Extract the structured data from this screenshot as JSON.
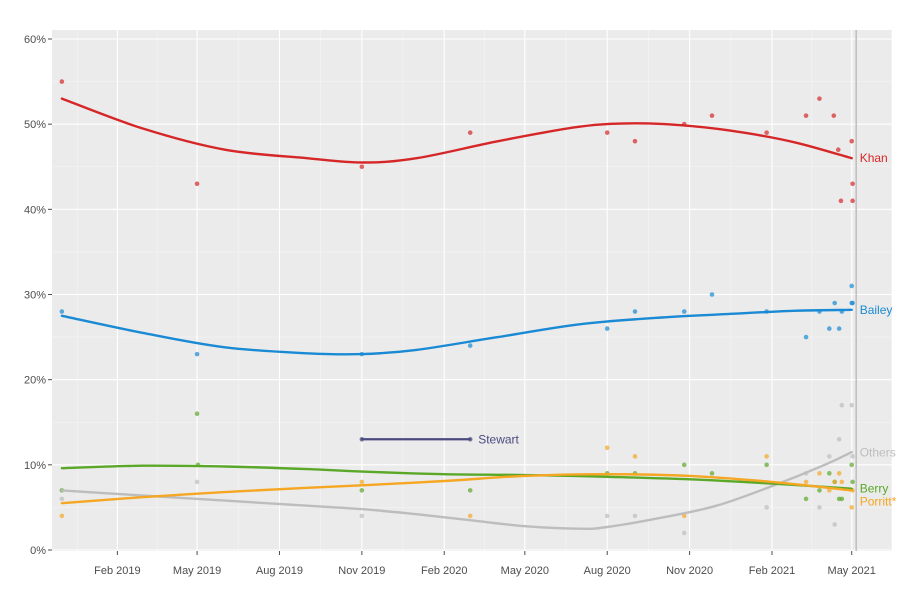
{
  "chart_data": {
    "type": "line",
    "title": "",
    "xlabel": "",
    "ylabel": "",
    "ylim": [
      0,
      60
    ],
    "xlim": [
      "2018-11-20",
      "2021-06-15"
    ],
    "grid": true,
    "legend": "none",
    "y_ticks": [
      "0%",
      "10%",
      "20%",
      "30%",
      "40%",
      "50%",
      "60%"
    ],
    "x_ticks": [
      {
        "date": "2019-02-01",
        "label": "Feb 2019"
      },
      {
        "date": "2019-05-01",
        "label": "May 2019"
      },
      {
        "date": "2019-08-01",
        "label": "Aug 2019"
      },
      {
        "date": "2019-11-01",
        "label": "Nov 2019"
      },
      {
        "date": "2020-02-01",
        "label": "Feb 2020"
      },
      {
        "date": "2020-05-01",
        "label": "May 2020"
      },
      {
        "date": "2020-08-01",
        "label": "Aug 2020"
      },
      {
        "date": "2020-11-01",
        "label": "Nov 2020"
      },
      {
        "date": "2021-02-01",
        "label": "Feb 2021"
      },
      {
        "date": "2021-05-01",
        "label": "May 2021"
      }
    ],
    "election_date": "2021-05-06",
    "series": [
      {
        "name": "Khan",
        "color": "#d62728",
        "trend": [
          [
            "2018-12-01",
            53
          ],
          [
            "2019-03-01",
            49.5
          ],
          [
            "2019-06-01",
            47
          ],
          [
            "2019-09-01",
            46
          ],
          [
            "2019-11-01",
            45.5
          ],
          [
            "2020-01-01",
            46
          ],
          [
            "2020-04-01",
            48
          ],
          [
            "2020-07-01",
            49.7
          ],
          [
            "2020-09-01",
            50.1
          ],
          [
            "2020-11-01",
            49.8
          ],
          [
            "2021-01-01",
            49
          ],
          [
            "2021-03-01",
            47.8
          ],
          [
            "2021-05-01",
            46
          ]
        ],
        "points": [
          [
            "2018-12-01",
            55
          ],
          [
            "2019-05-01",
            43
          ],
          [
            "2019-11-01",
            45
          ],
          [
            "2020-03-01",
            49
          ],
          [
            "2020-08-01",
            49
          ],
          [
            "2020-09-01",
            48
          ],
          [
            "2020-10-26",
            50
          ],
          [
            "2020-11-26",
            51
          ],
          [
            "2021-01-26",
            49
          ],
          [
            "2021-03-11",
            51
          ],
          [
            "2021-03-26",
            53
          ],
          [
            "2021-04-11",
            51
          ],
          [
            "2021-04-16",
            47
          ],
          [
            "2021-04-19",
            41
          ],
          [
            "2021-05-01",
            48
          ],
          [
            "2021-05-02",
            43
          ],
          [
            "2021-05-02",
            41
          ]
        ]
      },
      {
        "name": "Bailey",
        "color": "#1a8ad4",
        "trend": [
          [
            "2018-12-01",
            27.5
          ],
          [
            "2019-03-01",
            25.5
          ],
          [
            "2019-06-01",
            23.8
          ],
          [
            "2019-09-01",
            23.1
          ],
          [
            "2019-11-01",
            23
          ],
          [
            "2020-01-01",
            23.5
          ],
          [
            "2020-04-01",
            25
          ],
          [
            "2020-07-01",
            26.5
          ],
          [
            "2020-10-01",
            27.3
          ],
          [
            "2021-01-01",
            27.8
          ],
          [
            "2021-03-01",
            28.1
          ],
          [
            "2021-05-01",
            28.2
          ]
        ],
        "points": [
          [
            "2018-12-01",
            28
          ],
          [
            "2019-05-01",
            23
          ],
          [
            "2019-11-01",
            23
          ],
          [
            "2020-03-01",
            24
          ],
          [
            "2020-08-01",
            26
          ],
          [
            "2020-09-01",
            28
          ],
          [
            "2020-10-26",
            28
          ],
          [
            "2020-11-26",
            30
          ],
          [
            "2021-01-26",
            28
          ],
          [
            "2021-03-11",
            25
          ],
          [
            "2021-03-26",
            28
          ],
          [
            "2021-04-06",
            26
          ],
          [
            "2021-04-12",
            29
          ],
          [
            "2021-04-17",
            26
          ],
          [
            "2021-04-20",
            28
          ],
          [
            "2021-05-01",
            29
          ],
          [
            "2021-05-01",
            31
          ],
          [
            "2021-05-02",
            29
          ]
        ]
      },
      {
        "name": "Stewart",
        "color": "#4b4a80",
        "trend": [
          [
            "2019-11-01",
            13
          ],
          [
            "2020-03-01",
            13
          ]
        ],
        "points": [
          [
            "2019-11-01",
            13
          ],
          [
            "2020-03-01",
            13
          ]
        ]
      },
      {
        "name": "Others",
        "color": "#bdbdbd",
        "trend": [
          [
            "2018-12-01",
            7
          ],
          [
            "2019-03-01",
            6.4
          ],
          [
            "2019-06-01",
            5.8
          ],
          [
            "2019-09-01",
            5.2
          ],
          [
            "2019-11-01",
            4.8
          ],
          [
            "2020-01-01",
            4.2
          ],
          [
            "2020-03-01",
            3.5
          ],
          [
            "2020-05-01",
            2.8
          ],
          [
            "2020-07-01",
            2.5
          ],
          [
            "2020-08-01",
            2.7
          ],
          [
            "2020-10-01",
            3.8
          ],
          [
            "2020-12-01",
            5.2
          ],
          [
            "2021-02-01",
            7.5
          ],
          [
            "2021-04-01",
            10
          ],
          [
            "2021-05-01",
            11.5
          ]
        ],
        "points": [
          [
            "2018-12-01",
            6
          ],
          [
            "2019-05-01",
            8
          ],
          [
            "2019-11-01",
            4
          ],
          [
            "2020-08-01",
            4
          ],
          [
            "2020-09-01",
            4
          ],
          [
            "2020-10-26",
            2
          ],
          [
            "2021-01-26",
            5
          ],
          [
            "2021-03-11",
            9
          ],
          [
            "2021-03-26",
            5
          ],
          [
            "2021-04-06",
            11
          ],
          [
            "2021-04-12",
            3
          ],
          [
            "2021-04-17",
            13
          ],
          [
            "2021-04-20",
            17
          ],
          [
            "2021-05-01",
            17
          ],
          [
            "2021-05-02",
            11
          ]
        ]
      },
      {
        "name": "Berry",
        "color": "#5ba829",
        "trend": [
          [
            "2018-12-01",
            9.6
          ],
          [
            "2019-03-01",
            9.9
          ],
          [
            "2019-06-01",
            9.8
          ],
          [
            "2019-09-01",
            9.5
          ],
          [
            "2019-11-01",
            9.2
          ],
          [
            "2020-02-01",
            8.9
          ],
          [
            "2020-05-01",
            8.8
          ],
          [
            "2020-08-01",
            8.6
          ],
          [
            "2020-11-01",
            8.3
          ],
          [
            "2021-02-01",
            7.8
          ],
          [
            "2021-05-01",
            7.2
          ]
        ],
        "points": [
          [
            "2018-12-01",
            7
          ],
          [
            "2019-05-01",
            16
          ],
          [
            "2019-05-02",
            10
          ],
          [
            "2019-11-01",
            7
          ],
          [
            "2020-03-01",
            7
          ],
          [
            "2020-08-01",
            9
          ],
          [
            "2020-09-01",
            9
          ],
          [
            "2020-10-26",
            10
          ],
          [
            "2020-11-26",
            9
          ],
          [
            "2021-01-26",
            10
          ],
          [
            "2021-03-11",
            6
          ],
          [
            "2021-03-26",
            7
          ],
          [
            "2021-04-06",
            9
          ],
          [
            "2021-04-12",
            8
          ],
          [
            "2021-04-17",
            6
          ],
          [
            "2021-04-20",
            6
          ],
          [
            "2021-05-01",
            10
          ],
          [
            "2021-05-02",
            8
          ]
        ]
      },
      {
        "name": "Porritt*",
        "color": "#f5a623",
        "trend": [
          [
            "2018-12-01",
            5.5
          ],
          [
            "2019-03-01",
            6.2
          ],
          [
            "2019-06-01",
            6.8
          ],
          [
            "2019-09-01",
            7.3
          ],
          [
            "2019-11-01",
            7.6
          ],
          [
            "2020-02-01",
            8.1
          ],
          [
            "2020-05-01",
            8.7
          ],
          [
            "2020-08-01",
            8.9
          ],
          [
            "2020-11-01",
            8.7
          ],
          [
            "2021-02-01",
            8
          ],
          [
            "2021-05-01",
            7
          ]
        ],
        "points": [
          [
            "2018-12-01",
            4
          ],
          [
            "2019-11-01",
            8
          ],
          [
            "2020-03-01",
            4
          ],
          [
            "2020-08-01",
            12
          ],
          [
            "2020-09-01",
            11
          ],
          [
            "2020-10-26",
            4
          ],
          [
            "2021-01-26",
            11
          ],
          [
            "2021-03-11",
            8
          ],
          [
            "2021-03-26",
            9
          ],
          [
            "2021-04-06",
            7
          ],
          [
            "2021-04-12",
            8
          ],
          [
            "2021-04-17",
            9
          ],
          [
            "2021-04-20",
            8
          ],
          [
            "2021-05-01",
            5
          ],
          [
            "2021-05-02",
            7
          ]
        ]
      }
    ]
  }
}
